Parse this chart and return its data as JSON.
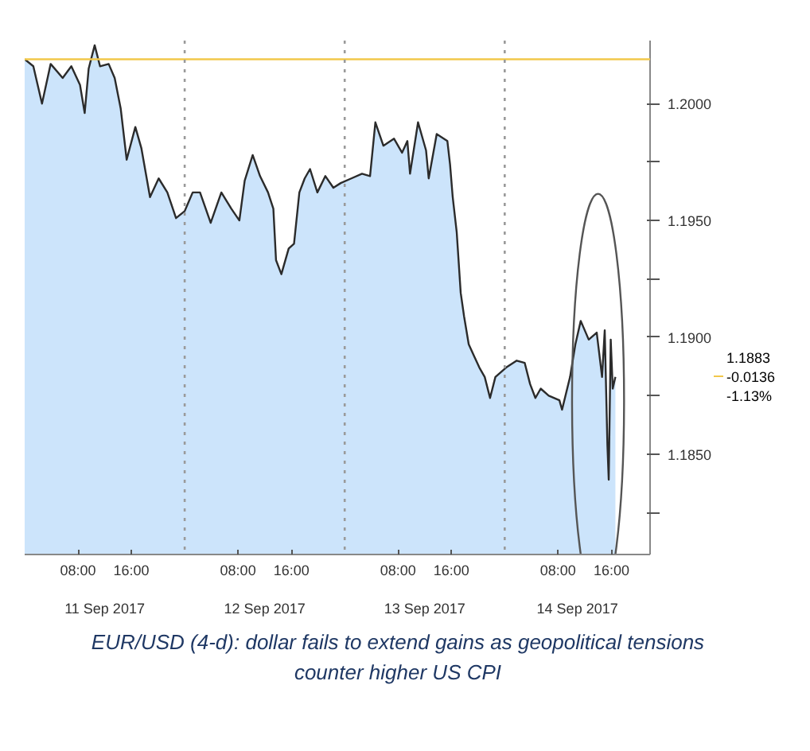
{
  "chart_data": {
    "type": "area",
    "annotations": [
      "1.1883",
      "-0.0136",
      "-1.13%",
      "11 Sep 2017",
      "12 Sep 2017",
      "13 Sep 2017",
      "14 Sep 2017",
      "EUR/USD (4-d): dollar fails to extend gains as geopolitical tensions counter higher US CPI"
    ],
    "x": [
      "2017-09-11T00:00",
      "2017-09-11T01:18",
      "2017-09-11T02:36",
      "2017-09-11T03:54",
      "2017-09-11T05:42",
      "2017-09-11T07:00",
      "2017-09-11T08:18",
      "2017-09-11T09:00",
      "2017-09-11T09:36",
      "2017-09-11T10:30",
      "2017-09-11T11:18",
      "2017-09-11T12:36",
      "2017-09-11T13:30",
      "2017-09-11T14:24",
      "2017-09-11T15:18",
      "2017-09-11T16:36",
      "2017-09-11T17:30",
      "2017-09-11T18:48",
      "2017-09-11T20:06",
      "2017-09-11T21:24",
      "2017-09-11T22:42",
      "2017-09-12T00:00",
      "2017-09-12T01:12",
      "2017-09-12T02:18",
      "2017-09-12T03:54",
      "2017-09-12T05:30",
      "2017-09-12T07:00",
      "2017-09-12T08:12",
      "2017-09-12T09:00",
      "2017-09-12T10:12",
      "2017-09-12T11:18",
      "2017-09-12T12:30",
      "2017-09-12T13:18",
      "2017-09-12T13:42",
      "2017-09-12T14:30",
      "2017-09-12T15:36",
      "2017-09-12T16:24",
      "2017-09-12T17:12",
      "2017-09-12T18:00",
      "2017-09-12T18:48",
      "2017-09-12T19:54",
      "2017-09-12T21:06",
      "2017-09-12T22:18",
      "2017-09-12T23:24",
      "2017-09-13T01:00",
      "2017-09-13T02:36",
      "2017-09-13T03:48",
      "2017-09-13T04:36",
      "2017-09-13T05:48",
      "2017-09-13T07:24",
      "2017-09-13T08:36",
      "2017-09-13T09:24",
      "2017-09-13T09:48",
      "2017-09-13T11:00",
      "2017-09-13T12:12",
      "2017-09-13T12:36",
      "2017-09-13T13:48",
      "2017-09-13T15:24",
      "2017-09-13T15:48",
      "2017-09-13T16:12",
      "2017-09-13T16:48",
      "2017-09-13T17:24",
      "2017-09-13T17:54",
      "2017-09-13T18:36",
      "2017-09-13T19:24",
      "2017-09-13T20:12",
      "2017-09-13T21:00",
      "2017-09-13T21:48",
      "2017-09-13T22:36",
      "2017-09-14T00:12",
      "2017-09-14T01:48",
      "2017-09-14T03:00",
      "2017-09-14T03:48",
      "2017-09-14T04:36",
      "2017-09-14T05:24",
      "2017-09-14T06:36",
      "2017-09-14T08:12",
      "2017-09-14T08:36",
      "2017-09-14T09:48",
      "2017-09-14T10:36",
      "2017-09-14T11:24",
      "2017-09-14T12:36",
      "2017-09-14T13:48",
      "2017-09-14T14:36",
      "2017-09-14T15:00",
      "2017-09-14T15:24",
      "2017-09-14T15:36",
      "2017-09-14T15:54",
      "2017-09-14T16:12",
      "2017-09-14T16:36"
    ],
    "series": [
      {
        "color": "#cce4fb",
        "values": [
          1.2019,
          1.2016,
          1.2,
          1.2017,
          1.2011,
          1.2016,
          1.2008,
          1.1996,
          1.2015,
          1.2025,
          1.2016,
          1.2017,
          1.2011,
          1.1998,
          1.1976,
          1.199,
          1.1981,
          1.196,
          1.1968,
          1.1962,
          1.1951,
          1.1954,
          1.1962,
          1.1962,
          1.1949,
          1.1962,
          1.1955,
          1.195,
          1.1967,
          1.1978,
          1.1969,
          1.1962,
          1.1955,
          1.1933,
          1.1927,
          1.1938,
          1.194,
          1.1962,
          1.1968,
          1.1972,
          1.1962,
          1.1969,
          1.1964,
          1.1966,
          1.1968,
          1.197,
          1.1969,
          1.1992,
          1.1982,
          1.1985,
          1.1979,
          1.1984,
          1.197,
          1.1992,
          1.198,
          1.1968,
          1.1987,
          1.1984,
          1.1974,
          1.196,
          1.1945,
          1.1919,
          1.1909,
          1.1897,
          1.1892,
          1.1887,
          1.1883,
          1.1874,
          1.1883,
          1.1887,
          1.189,
          1.1889,
          1.188,
          1.1874,
          1.1878,
          1.1875,
          1.1873,
          1.1869,
          1.1883,
          1.1897,
          1.1907,
          1.1899,
          1.1902,
          1.1883,
          1.1903,
          1.1854,
          1.1839,
          1.1899,
          1.1878,
          1.1883
        ]
      }
    ],
    "xlim": [
      "2017-09-11T00:00",
      "2017-09-14T21:48"
    ],
    "xticks": [
      {
        "value": "2017-09-11T08:00",
        "label": "08:00"
      },
      {
        "value": "2017-09-11T16:00",
        "label": "16:00"
      },
      {
        "value": "2017-09-12T08:00",
        "label": "08:00"
      },
      {
        "value": "2017-09-12T16:00",
        "label": "16:00"
      },
      {
        "value": "2017-09-13T08:00",
        "label": "08:00"
      },
      {
        "value": "2017-09-13T16:00",
        "label": "16:00"
      },
      {
        "value": "2017-09-14T08:00",
        "label": "08:00"
      },
      {
        "value": "2017-09-14T16:00",
        "label": "16:00"
      }
    ],
    "ylim": [
      1.1807,
      1.2027
    ],
    "yticks": [
      {
        "value": 1.1825,
        "label": null
      },
      {
        "value": 1.185,
        "label": "1.1850"
      },
      {
        "value": 1.1875,
        "label": null
      },
      {
        "value": 1.19,
        "label": "1.1900"
      },
      {
        "value": 1.1925,
        "label": null
      },
      {
        "value": 1.195,
        "label": "1.1950"
      },
      {
        "value": 1.1975,
        "label": null
      },
      {
        "value": 1.2,
        "label": "1.2000"
      }
    ],
    "ref_lines": [
      {
        "axis": "y",
        "value": 1.2019,
        "color": "#f2c84b",
        "line_style": "solid"
      },
      {
        "axis": "x",
        "value": "2017-09-12T00:00",
        "color": "#9a9a9a",
        "line_style": "dotted"
      },
      {
        "axis": "x",
        "value": "2017-09-13T00:00",
        "color": "#9a9a9a",
        "line_style": "dotted"
      },
      {
        "axis": "x",
        "value": "2017-09-14T00:00",
        "color": "#9a9a9a",
        "line_style": "dotted"
      }
    ],
    "grid": false
  }
}
